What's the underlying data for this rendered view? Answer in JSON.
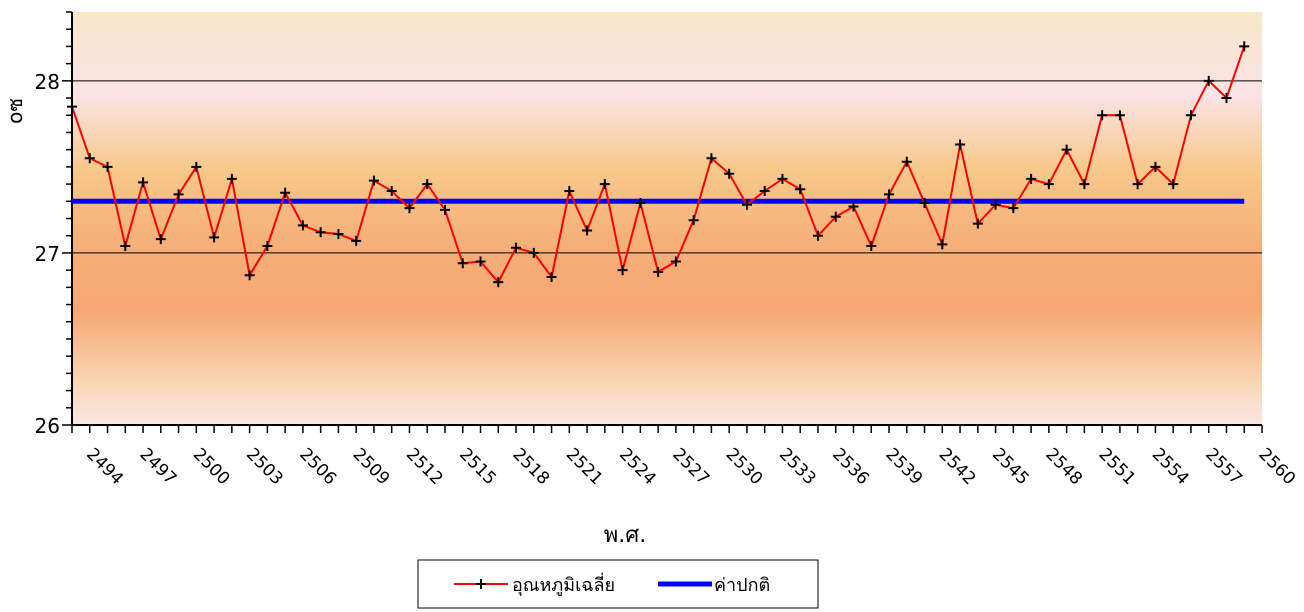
{
  "chart_data": {
    "type": "line",
    "xlabel": "พ.ศ.",
    "ylabel": "oซ",
    "ylim": [
      26,
      28.4
    ],
    "yticks": [
      26,
      27,
      28
    ],
    "xlim": [
      2493,
      2560
    ],
    "xticks": [
      2494,
      2497,
      2500,
      2503,
      2506,
      2509,
      2512,
      2515,
      2518,
      2521,
      2524,
      2527,
      2530,
      2533,
      2536,
      2539,
      2542,
      2545,
      2548,
      2551,
      2554,
      2557,
      2560
    ],
    "x": [
      2493,
      2494,
      2495,
      2496,
      2497,
      2498,
      2499,
      2500,
      2501,
      2502,
      2503,
      2504,
      2505,
      2506,
      2507,
      2508,
      2509,
      2510,
      2511,
      2512,
      2513,
      2514,
      2515,
      2516,
      2517,
      2518,
      2519,
      2520,
      2521,
      2522,
      2523,
      2524,
      2525,
      2526,
      2527,
      2528,
      2529,
      2530,
      2531,
      2532,
      2533,
      2534,
      2535,
      2536,
      2537,
      2538,
      2539,
      2540,
      2541,
      2542,
      2543,
      2544,
      2545,
      2546,
      2547,
      2548,
      2549,
      2550,
      2551,
      2552,
      2553,
      2554,
      2555,
      2556,
      2557,
      2558,
      2559
    ],
    "series": [
      {
        "name": "อุณหภูมิเฉลี่ย",
        "color": "#ff0000",
        "marker": "plus",
        "values": [
          27.85,
          27.55,
          27.5,
          27.04,
          27.41,
          27.08,
          27.34,
          27.5,
          27.09,
          27.43,
          26.87,
          27.04,
          27.35,
          27.16,
          27.12,
          27.11,
          27.07,
          27.42,
          27.36,
          27.26,
          27.4,
          27.25,
          26.94,
          26.95,
          26.83,
          27.03,
          27.0,
          26.86,
          27.36,
          27.13,
          27.4,
          26.9,
          27.29,
          26.89,
          26.95,
          27.19,
          27.55,
          27.46,
          27.28,
          27.36,
          27.43,
          27.37,
          27.1,
          27.21,
          27.27,
          27.04,
          27.34,
          27.53,
          27.29,
          27.05,
          27.63,
          27.17,
          27.28,
          27.26,
          27.43,
          27.4,
          27.6,
          27.4,
          27.8,
          27.8,
          27.4,
          27.5,
          27.4,
          27.8,
          28.0,
          27.9,
          28.2
        ]
      },
      {
        "name": "ค่าปกติ",
        "color": "#0000ff",
        "constant": 27.3
      }
    ],
    "grid": true,
    "legend_position": "bottom-center"
  }
}
